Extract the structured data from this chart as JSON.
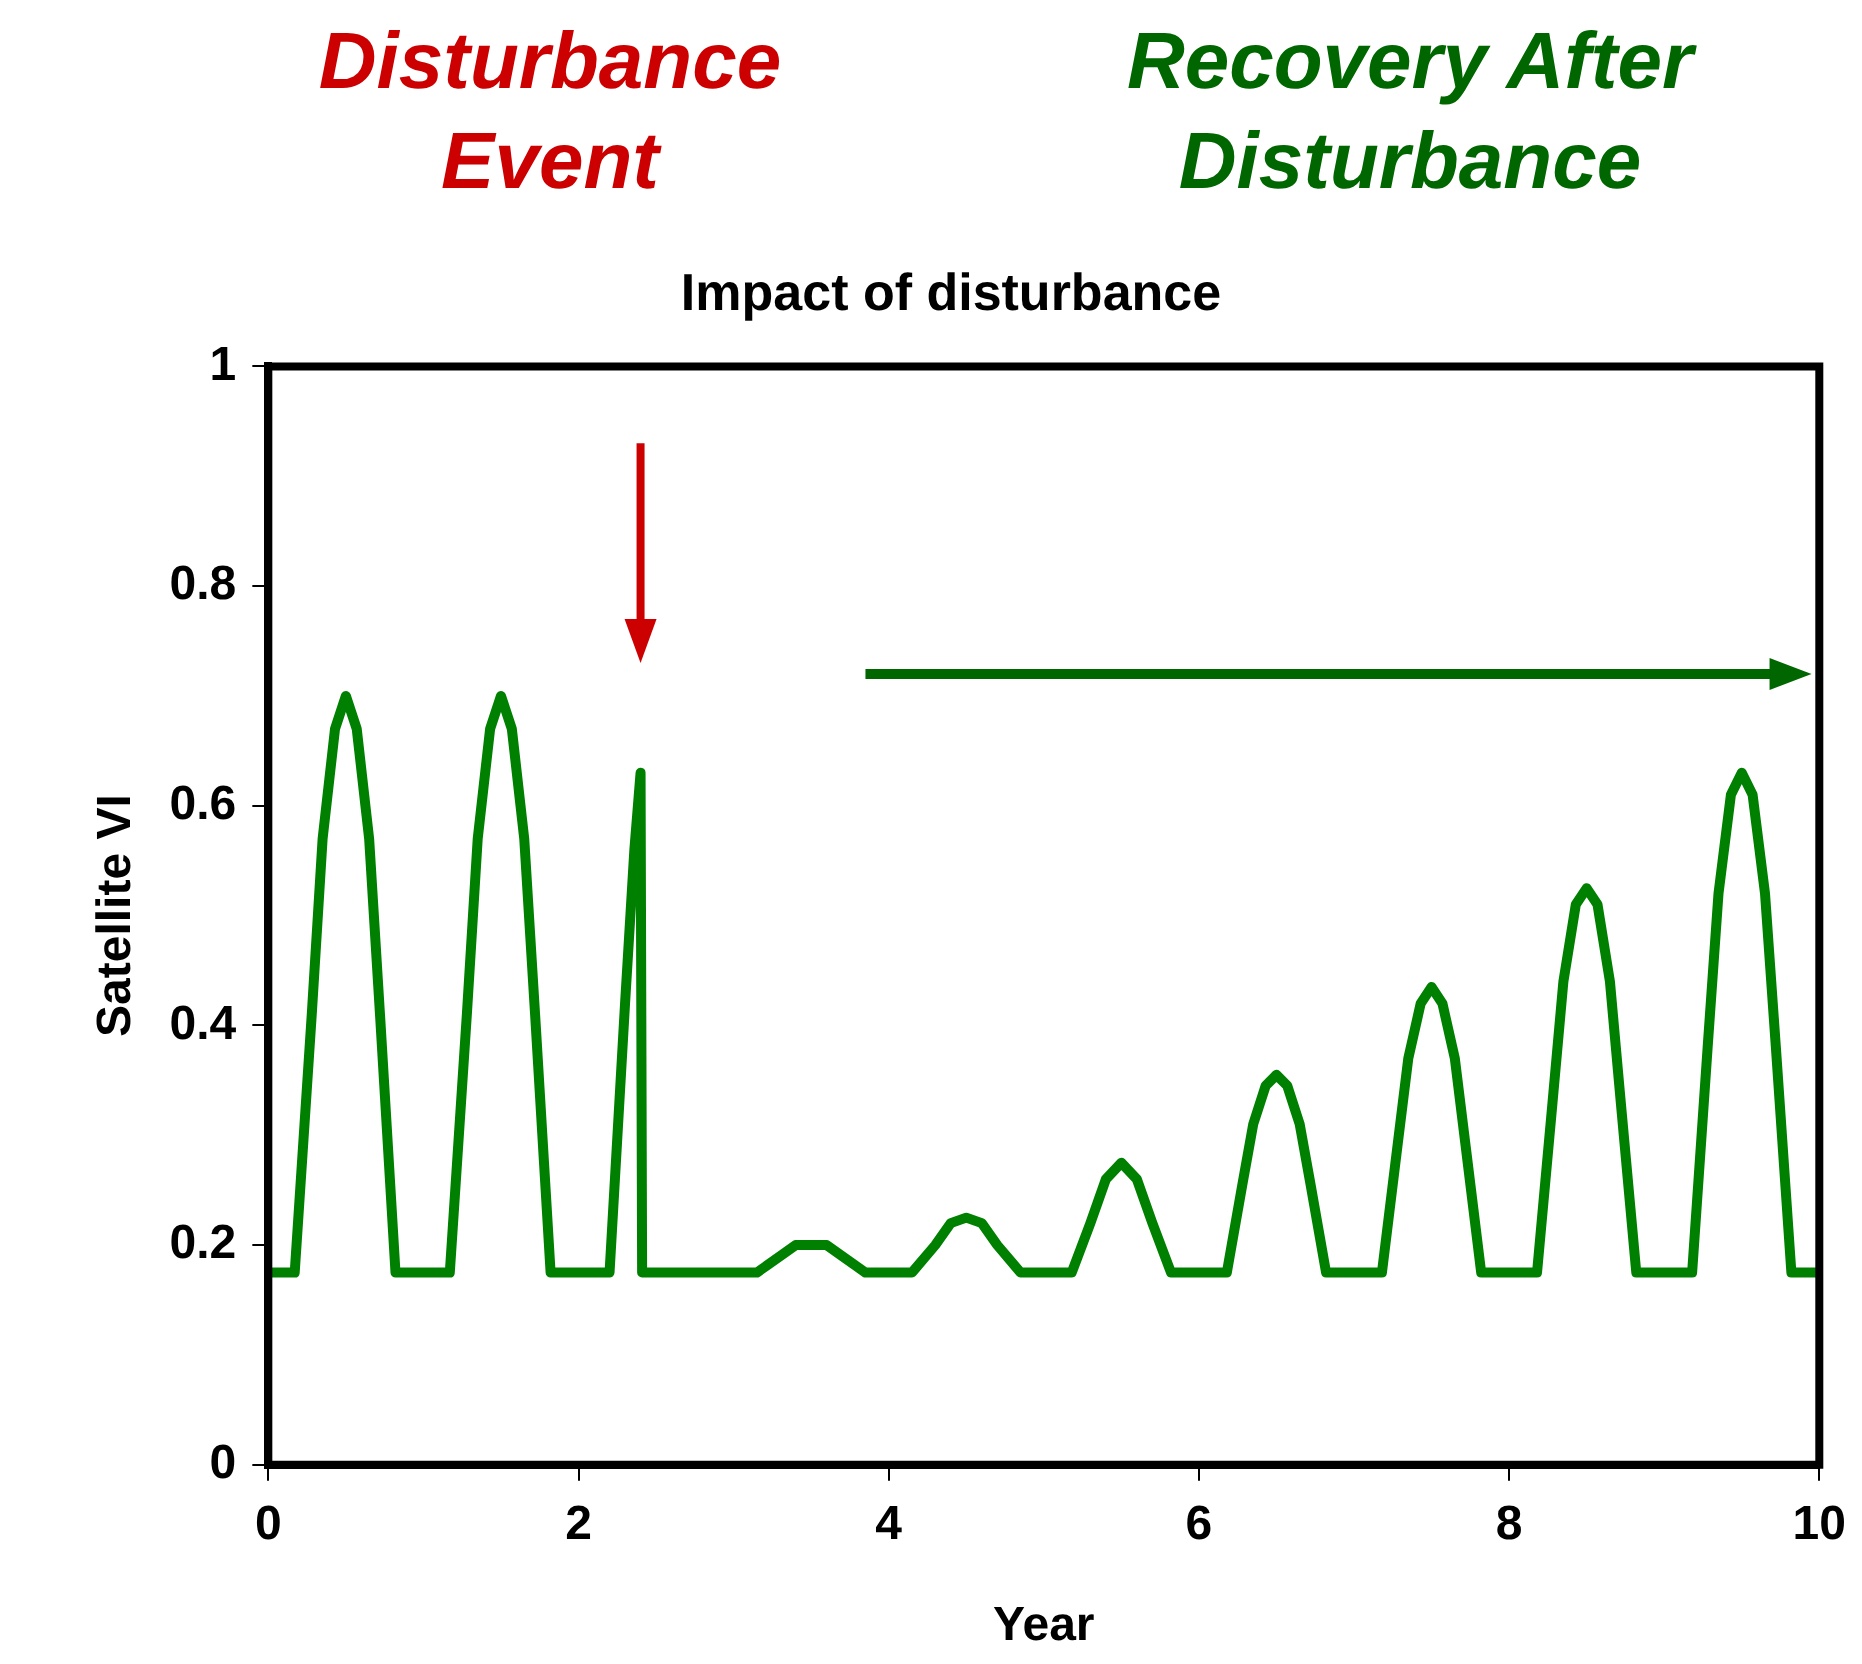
{
  "chart_data": {
    "type": "line",
    "title": "Impact of disturbance",
    "xlabel": "Year",
    "ylabel": "Satellite VI",
    "annotations": [
      "Disturbance Event",
      "Recovery After Disturbance"
    ],
    "xlim": [
      0,
      10
    ],
    "xticks": [
      0,
      2,
      4,
      6,
      8,
      10
    ],
    "ylim": [
      0,
      1
    ],
    "yticks": [
      0,
      0.2,
      0.4,
      0.6,
      0.8,
      1
    ],
    "grid": false,
    "legend": false,
    "marker": "none",
    "line_style": "solid",
    "series": [
      {
        "color": "#008000",
        "x": [
          0,
          0.17,
          0.28,
          0.35,
          0.43,
          0.5,
          0.57,
          0.65,
          0.72,
          0.82,
          1.17,
          1.28,
          1.35,
          1.43,
          1.5,
          1.57,
          1.65,
          1.72,
          1.82,
          2.2,
          2.3,
          2.36,
          2.4,
          2.41,
          3.15,
          3.3,
          3.4,
          3.5,
          3.6,
          3.7,
          3.85,
          4.15,
          4.3,
          4.4,
          4.5,
          4.6,
          4.7,
          4.85,
          5.18,
          5.3,
          5.4,
          5.5,
          5.6,
          5.7,
          5.82,
          6.18,
          6.28,
          6.35,
          6.43,
          6.5,
          6.57,
          6.65,
          6.72,
          6.82,
          7.18,
          7.28,
          7.35,
          7.43,
          7.5,
          7.57,
          7.65,
          7.72,
          7.82,
          8.18,
          8.28,
          8.35,
          8.43,
          8.5,
          8.57,
          8.65,
          8.72,
          8.82,
          9.18,
          9.28,
          9.35,
          9.43,
          9.5,
          9.57,
          9.65,
          9.72,
          9.82,
          10
        ],
        "values": [
          0.175,
          0.175,
          0.41,
          0.57,
          0.67,
          0.7,
          0.67,
          0.57,
          0.41,
          0.175,
          0.175,
          0.41,
          0.57,
          0.67,
          0.7,
          0.67,
          0.57,
          0.41,
          0.175,
          0.175,
          0.42,
          0.56,
          0.63,
          0.175,
          0.175,
          0.19,
          0.2,
          0.2,
          0.2,
          0.19,
          0.175,
          0.175,
          0.2,
          0.22,
          0.225,
          0.22,
          0.2,
          0.175,
          0.175,
          0.22,
          0.26,
          0.275,
          0.26,
          0.22,
          0.175,
          0.175,
          0.255,
          0.31,
          0.345,
          0.355,
          0.345,
          0.31,
          0.255,
          0.175,
          0.175,
          0.29,
          0.37,
          0.42,
          0.435,
          0.42,
          0.37,
          0.29,
          0.175,
          0.175,
          0.33,
          0.44,
          0.51,
          0.525,
          0.51,
          0.44,
          0.33,
          0.175,
          0.175,
          0.38,
          0.52,
          0.61,
          0.63,
          0.61,
          0.52,
          0.38,
          0.175,
          0.175
        ]
      }
    ]
  }
}
